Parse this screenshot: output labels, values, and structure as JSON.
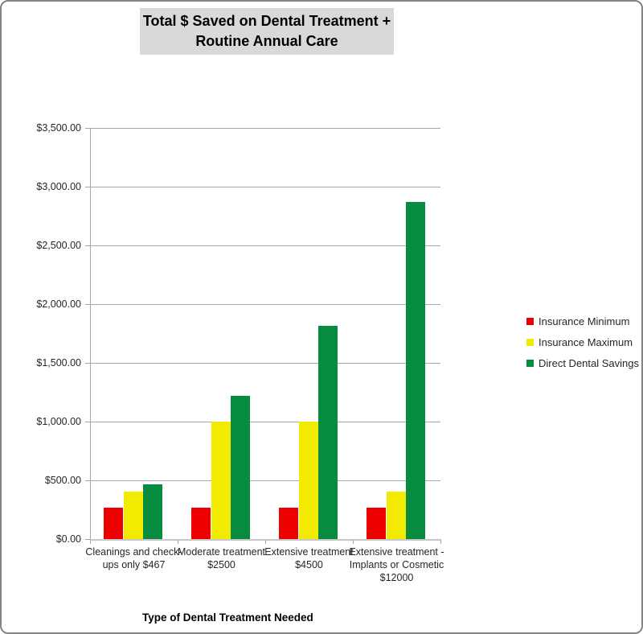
{
  "chart_data": {
    "type": "bar",
    "title": "Total $ Saved on Dental Treatment + Routine Annual Care",
    "title_lines": [
      "Total $ Saved on Dental Treatment +",
      "Routine Annual Care"
    ],
    "xlabel": "Type of Dental Treatment Needed",
    "ylabel": "",
    "ylim": [
      0,
      3500
    ],
    "ytick_step": 500,
    "ytick_labels": [
      "$0.00",
      "$500.00",
      "$1,000.00",
      "$1,500.00",
      "$2,000.00",
      "$2,500.00",
      "$3,000.00",
      "$3,500.00"
    ],
    "grid": true,
    "legend_position": "right",
    "categories": [
      "Cleanings and check-ups only $467",
      "Moderate treatment $2500",
      "Extensive treatment $4500",
      "Extensive treatment - Implants or Cosmetic $12000"
    ],
    "category_label_lines": [
      [
        "Cleanings and check-",
        "ups only $467"
      ],
      [
        "Moderate treatment",
        "$2500"
      ],
      [
        "Extensive treatment",
        "$4500"
      ],
      [
        "Extensive treatment -",
        "Implants or Cosmetic",
        "$12000"
      ]
    ],
    "series": [
      {
        "name": "Insurance Minimum",
        "color": "#ec0000",
        "values": [
          267,
          267,
          267,
          267
        ]
      },
      {
        "name": "Insurance Maximum",
        "color": "#f2ea00",
        "values": [
          407,
          1000,
          1000,
          407
        ]
      },
      {
        "name": "Direct Dental Savings",
        "color": "#078b3e",
        "values": [
          467,
          1217,
          1817,
          2867
        ]
      }
    ]
  },
  "colors": {
    "title_background": "#d9d9d9",
    "gridline": "#a6a6a6",
    "axis": "#a6a6a6",
    "text": "#262626",
    "frame_border": "#848484",
    "series_red": "#ec0000",
    "series_yellow": "#f2ea00",
    "series_green": "#078b3e"
  }
}
